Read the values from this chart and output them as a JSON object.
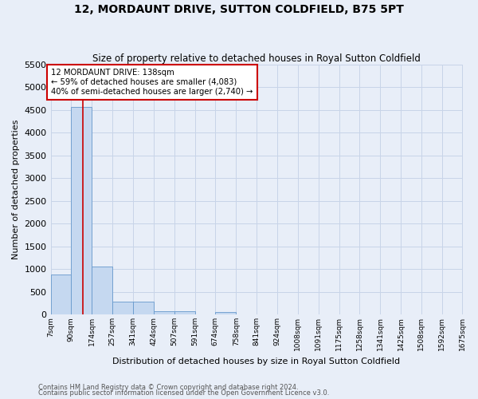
{
  "title": "12, MORDAUNT DRIVE, SUTTON COLDFIELD, B75 5PT",
  "subtitle": "Size of property relative to detached houses in Royal Sutton Coldfield",
  "xlabel": "Distribution of detached houses by size in Royal Sutton Coldfield",
  "ylabel": "Number of detached properties",
  "footnote1": "Contains HM Land Registry data © Crown copyright and database right 2024.",
  "footnote2": "Contains public sector information licensed under the Open Government Licence v3.0.",
  "bin_edges": [
    7,
    90,
    174,
    257,
    341,
    424,
    507,
    591,
    674,
    758,
    841,
    924,
    1008,
    1091,
    1175,
    1258,
    1341,
    1425,
    1508,
    1592,
    1675
  ],
  "bin_labels": [
    "7sqm",
    "90sqm",
    "174sqm",
    "257sqm",
    "341sqm",
    "424sqm",
    "507sqm",
    "591sqm",
    "674sqm",
    "758sqm",
    "841sqm",
    "924sqm",
    "1008sqm",
    "1091sqm",
    "1175sqm",
    "1258sqm",
    "1341sqm",
    "1425sqm",
    "1508sqm",
    "1592sqm",
    "1675sqm"
  ],
  "counts": [
    880,
    4560,
    1060,
    280,
    280,
    80,
    75,
    0,
    60,
    0,
    0,
    0,
    0,
    0,
    0,
    0,
    0,
    0,
    0,
    0
  ],
  "bar_color": "#c5d8f0",
  "bar_edge_color": "#6699cc",
  "grid_color": "#c8d4e8",
  "bg_color": "#e8eef8",
  "vline_x": 138,
  "vline_color": "#cc0000",
  "annotation_text": "12 MORDAUNT DRIVE: 138sqm\n← 59% of detached houses are smaller (4,083)\n40% of semi-detached houses are larger (2,740) →",
  "annotation_box_color": "white",
  "annotation_box_edge": "#cc0000",
  "ylim": [
    0,
    5500
  ],
  "yticks": [
    0,
    500,
    1000,
    1500,
    2000,
    2500,
    3000,
    3500,
    4000,
    4500,
    5000,
    5500
  ]
}
